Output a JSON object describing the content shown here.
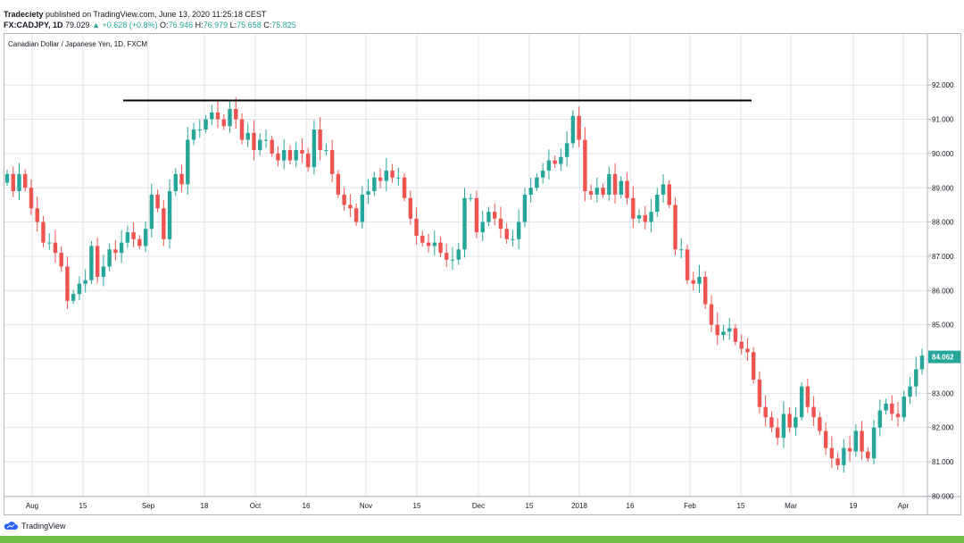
{
  "header": {
    "publisher": "Tradeciety",
    "published_text": "published on TradingView.com, June 13, 2020 11:25:18 CEST",
    "symbol": "FX:CADJPY, 1D",
    "last": "79.029",
    "change": "▲ +0.628 (+0.8%)",
    "o_label": "O:",
    "o_value": "76.946",
    "h_label": "H:",
    "h_value": "76.979",
    "l_label": "L:",
    "l_value": "75.658",
    "c_label": "C:",
    "c_value": "75.825"
  },
  "footer": {
    "logo_text": "TradingView"
  },
  "colors": {
    "up": "#26a69a",
    "down": "#ef5350",
    "grid": "#e0e3eb",
    "line": "#000000",
    "price_label_bg": "#26a69a",
    "footer_bar": "#6fbe44"
  },
  "chart_data": {
    "type": "candlestick",
    "title": "Canadian Dollar / Japanese Yen, 1D, FXCM",
    "ylim": [
      79.4,
      92.6
    ],
    "y_ticks": [
      "92.000",
      "91.000",
      "90.000",
      "89.000",
      "88.000",
      "87.000",
      "86.000",
      "85.000",
      "84.000",
      "83.000",
      "82.000",
      "81.000",
      "80.000"
    ],
    "x_tick_labels": [
      "Aug",
      "15",
      "Sep",
      "18",
      "Oct",
      "16",
      "Nov",
      "15",
      "Dec",
      "15",
      "2018",
      "16",
      "Feb",
      "15",
      "Mar",
      "19",
      "Apr"
    ],
    "last_price_label": "84.062",
    "grid": true,
    "resistance_level": 91.55,
    "closes": [
      89.4,
      88.9,
      89.4,
      89.0,
      88.4,
      88.0,
      87.4,
      87.4,
      87.1,
      86.7,
      85.7,
      85.9,
      86.2,
      86.3,
      87.3,
      86.4,
      86.7,
      87.2,
      87.1,
      87.4,
      87.7,
      87.5,
      87.3,
      87.8,
      88.8,
      88.4,
      87.5,
      88.9,
      89.4,
      89.1,
      90.4,
      90.7,
      90.7,
      91.0,
      91.2,
      91.0,
      90.8,
      91.3,
      91.0,
      90.4,
      90.6,
      90.1,
      90.4,
      90.4,
      90.0,
      89.8,
      90.1,
      89.8,
      90.1,
      90.0,
      89.6,
      90.7,
      90.1,
      90.1,
      89.4,
      88.8,
      88.5,
      88.4,
      88.0,
      88.8,
      88.9,
      89.3,
      89.2,
      89.5,
      89.3,
      89.3,
      88.7,
      88.1,
      87.6,
      87.4,
      87.3,
      87.4,
      87.1,
      86.9,
      86.9,
      87.2,
      88.7,
      88.7,
      87.7,
      88.0,
      88.3,
      88.1,
      87.8,
      87.5,
      87.5,
      88.0,
      88.8,
      89.0,
      89.3,
      89.5,
      89.8,
      89.7,
      89.9,
      90.3,
      91.1,
      90.4,
      88.9,
      88.8,
      89.0,
      88.8,
      89.4,
      88.8,
      89.2,
      88.7,
      88.1,
      88.2,
      88.0,
      88.3,
      88.8,
      89.1,
      88.5,
      87.2,
      87.2,
      86.3,
      86.2,
      86.4,
      85.6,
      85.0,
      84.7,
      84.8,
      84.9,
      84.5,
      84.3,
      84.2,
      83.4,
      82.6,
      82.3,
      82.0,
      81.7,
      82.4,
      82.0,
      82.3,
      83.2,
      82.6,
      82.3,
      81.9,
      81.4,
      81.1,
      80.9,
      81.4,
      81.3,
      81.9,
      81.3,
      81.1,
      82.0,
      82.5,
      82.7,
      82.4,
      82.3,
      82.9,
      83.2,
      83.7,
      84.1
    ]
  }
}
